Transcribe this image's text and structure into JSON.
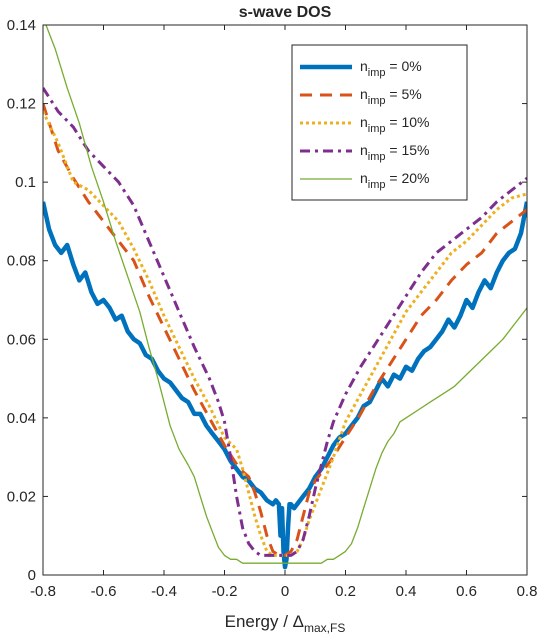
{
  "chart_data": {
    "type": "line",
    "title": "s-wave DOS",
    "xlabel": "Energy / Δ",
    "xlabel_sub": "max,FS",
    "ylabel": "",
    "xlim": [
      -0.8,
      0.8
    ],
    "ylim": [
      0,
      0.14
    ],
    "xticks": [
      -0.8,
      -0.6,
      -0.4,
      -0.2,
      0,
      0.2,
      0.4,
      0.6,
      0.8
    ],
    "xtick_labels": [
      "-0.8",
      "-0.6",
      "-0.4",
      "-0.2",
      "0",
      "0.2",
      "0.4",
      "0.6",
      "0.8"
    ],
    "yticks": [
      0,
      0.02,
      0.04,
      0.06,
      0.08,
      0.1,
      0.12,
      0.14
    ],
    "ytick_labels": [
      "0",
      "0.02",
      "0.04",
      "0.06",
      "0.08",
      "0.1",
      "0.12",
      "0.14"
    ],
    "grid": false,
    "legend_position": "top-right",
    "series": [
      {
        "name": "n_imp = 0%",
        "legend_main": "n",
        "legend_sub": "imp",
        "legend_tail": " = 0%",
        "color": "#0072BD",
        "style": "solid-thick",
        "x": [
          -0.8,
          -0.78,
          -0.76,
          -0.74,
          -0.72,
          -0.7,
          -0.68,
          -0.66,
          -0.64,
          -0.62,
          -0.6,
          -0.58,
          -0.56,
          -0.54,
          -0.52,
          -0.5,
          -0.48,
          -0.46,
          -0.44,
          -0.42,
          -0.4,
          -0.38,
          -0.36,
          -0.34,
          -0.32,
          -0.3,
          -0.28,
          -0.26,
          -0.24,
          -0.22,
          -0.2,
          -0.18,
          -0.16,
          -0.14,
          -0.12,
          -0.1,
          -0.08,
          -0.06,
          -0.04,
          -0.03,
          -0.02,
          -0.015,
          -0.01,
          -0.005,
          0,
          0.005,
          0.01,
          0.015,
          0.02,
          0.03,
          0.04,
          0.06,
          0.08,
          0.1,
          0.12,
          0.14,
          0.16,
          0.18,
          0.2,
          0.22,
          0.24,
          0.26,
          0.28,
          0.3,
          0.32,
          0.34,
          0.36,
          0.38,
          0.4,
          0.42,
          0.44,
          0.46,
          0.48,
          0.5,
          0.52,
          0.54,
          0.56,
          0.58,
          0.6,
          0.62,
          0.64,
          0.66,
          0.68,
          0.7,
          0.72,
          0.74,
          0.76,
          0.78,
          0.8
        ],
        "y": [
          0.095,
          0.088,
          0.084,
          0.082,
          0.084,
          0.079,
          0.075,
          0.077,
          0.072,
          0.069,
          0.07,
          0.068,
          0.065,
          0.066,
          0.062,
          0.06,
          0.059,
          0.056,
          0.055,
          0.052,
          0.05,
          0.049,
          0.047,
          0.045,
          0.044,
          0.041,
          0.041,
          0.038,
          0.036,
          0.034,
          0.032,
          0.029,
          0.027,
          0.025,
          0.024,
          0.022,
          0.021,
          0.019,
          0.018,
          0.019,
          0.018,
          0.01,
          0.017,
          0.006,
          0.002,
          0.004,
          0.012,
          0.018,
          0.018,
          0.017,
          0.018,
          0.02,
          0.022,
          0.025,
          0.027,
          0.03,
          0.033,
          0.035,
          0.036,
          0.038,
          0.04,
          0.043,
          0.044,
          0.047,
          0.05,
          0.048,
          0.051,
          0.05,
          0.053,
          0.052,
          0.055,
          0.057,
          0.058,
          0.06,
          0.062,
          0.065,
          0.063,
          0.066,
          0.07,
          0.068,
          0.072,
          0.075,
          0.073,
          0.077,
          0.08,
          0.082,
          0.083,
          0.087,
          0.095
        ]
      },
      {
        "name": "n_imp = 5%",
        "legend_main": "n",
        "legend_sub": "imp",
        "legend_tail": " = 5%",
        "color": "#D95319",
        "style": "dashed",
        "x": [
          -0.8,
          -0.75,
          -0.7,
          -0.65,
          -0.6,
          -0.55,
          -0.5,
          -0.45,
          -0.4,
          -0.35,
          -0.3,
          -0.25,
          -0.2,
          -0.15,
          -0.12,
          -0.1,
          -0.08,
          -0.06,
          -0.04,
          -0.02,
          0,
          0.02,
          0.04,
          0.06,
          0.08,
          0.1,
          0.12,
          0.15,
          0.2,
          0.25,
          0.3,
          0.35,
          0.4,
          0.45,
          0.5,
          0.55,
          0.6,
          0.65,
          0.7,
          0.75,
          0.8
        ],
        "y": [
          0.12,
          0.108,
          0.101,
          0.095,
          0.09,
          0.085,
          0.08,
          0.071,
          0.063,
          0.055,
          0.047,
          0.04,
          0.033,
          0.027,
          0.025,
          0.021,
          0.016,
          0.01,
          0.006,
          0.005,
          0.005,
          0.006,
          0.009,
          0.015,
          0.021,
          0.024,
          0.026,
          0.029,
          0.035,
          0.041,
          0.048,
          0.054,
          0.06,
          0.066,
          0.07,
          0.075,
          0.079,
          0.082,
          0.087,
          0.09,
          0.093
        ]
      },
      {
        "name": "n_imp = 10%",
        "legend_main": "n",
        "legend_sub": "imp",
        "legend_tail": " = 10%",
        "color": "#EDB120",
        "style": "dotted",
        "x": [
          -0.8,
          -0.75,
          -0.7,
          -0.65,
          -0.6,
          -0.55,
          -0.5,
          -0.45,
          -0.4,
          -0.35,
          -0.3,
          -0.25,
          -0.2,
          -0.16,
          -0.14,
          -0.12,
          -0.1,
          -0.08,
          -0.06,
          -0.04,
          -0.02,
          0,
          0.02,
          0.04,
          0.06,
          0.08,
          0.1,
          0.12,
          0.14,
          0.16,
          0.2,
          0.25,
          0.3,
          0.35,
          0.4,
          0.45,
          0.5,
          0.55,
          0.6,
          0.65,
          0.7,
          0.75,
          0.8
        ],
        "y": [
          0.118,
          0.11,
          0.1,
          0.098,
          0.094,
          0.09,
          0.083,
          0.075,
          0.066,
          0.058,
          0.05,
          0.043,
          0.035,
          0.032,
          0.027,
          0.021,
          0.015,
          0.01,
          0.006,
          0.005,
          0.005,
          0.005,
          0.005,
          0.006,
          0.009,
          0.014,
          0.018,
          0.022,
          0.026,
          0.03,
          0.039,
          0.046,
          0.053,
          0.06,
          0.067,
          0.072,
          0.077,
          0.082,
          0.085,
          0.089,
          0.093,
          0.096,
          0.097
        ]
      },
      {
        "name": "n_imp = 15%",
        "legend_main": "n",
        "legend_sub": "imp",
        "legend_tail": " = 15%",
        "color": "#7E2F8E",
        "style": "dashdot",
        "x": [
          -0.8,
          -0.75,
          -0.7,
          -0.65,
          -0.6,
          -0.55,
          -0.5,
          -0.45,
          -0.4,
          -0.35,
          -0.3,
          -0.25,
          -0.22,
          -0.2,
          -0.18,
          -0.16,
          -0.14,
          -0.12,
          -0.1,
          -0.08,
          -0.06,
          -0.04,
          -0.02,
          0,
          0.02,
          0.04,
          0.06,
          0.08,
          0.1,
          0.12,
          0.14,
          0.16,
          0.2,
          0.25,
          0.3,
          0.35,
          0.4,
          0.45,
          0.5,
          0.55,
          0.6,
          0.65,
          0.7,
          0.75,
          0.8
        ],
        "y": [
          0.124,
          0.118,
          0.114,
          0.108,
          0.104,
          0.1,
          0.094,
          0.085,
          0.076,
          0.067,
          0.058,
          0.05,
          0.044,
          0.039,
          0.03,
          0.02,
          0.012,
          0.008,
          0.006,
          0.005,
          0.005,
          0.005,
          0.005,
          0.005,
          0.005,
          0.006,
          0.009,
          0.015,
          0.022,
          0.028,
          0.034,
          0.039,
          0.046,
          0.053,
          0.059,
          0.065,
          0.071,
          0.077,
          0.082,
          0.085,
          0.088,
          0.091,
          0.095,
          0.098,
          0.101
        ]
      },
      {
        "name": "n_imp = 20%",
        "legend_main": "n",
        "legend_sub": "imp",
        "legend_tail": " = 20%",
        "color": "#77AC30",
        "style": "solid-thin",
        "x": [
          -0.79,
          -0.76,
          -0.72,
          -0.68,
          -0.64,
          -0.6,
          -0.56,
          -0.52,
          -0.48,
          -0.45,
          -0.42,
          -0.4,
          -0.38,
          -0.35,
          -0.32,
          -0.3,
          -0.28,
          -0.26,
          -0.24,
          -0.22,
          -0.2,
          -0.18,
          -0.16,
          -0.14,
          -0.12,
          -0.1,
          -0.08,
          -0.05,
          0,
          0.05,
          0.1,
          0.12,
          0.14,
          0.16,
          0.18,
          0.2,
          0.22,
          0.24,
          0.26,
          0.28,
          0.3,
          0.32,
          0.34,
          0.36,
          0.38,
          0.4,
          0.44,
          0.48,
          0.52,
          0.56,
          0.6,
          0.64,
          0.68,
          0.72,
          0.76,
          0.8
        ],
        "y": [
          0.14,
          0.134,
          0.124,
          0.115,
          0.104,
          0.095,
          0.085,
          0.076,
          0.067,
          0.058,
          0.05,
          0.044,
          0.038,
          0.032,
          0.028,
          0.025,
          0.02,
          0.015,
          0.011,
          0.007,
          0.005,
          0.004,
          0.004,
          0.003,
          0.003,
          0.003,
          0.003,
          0.003,
          0.003,
          0.003,
          0.003,
          0.003,
          0.004,
          0.004,
          0.005,
          0.006,
          0.008,
          0.012,
          0.017,
          0.022,
          0.027,
          0.031,
          0.034,
          0.036,
          0.039,
          0.04,
          0.042,
          0.044,
          0.046,
          0.048,
          0.051,
          0.054,
          0.057,
          0.06,
          0.064,
          0.068
        ]
      }
    ]
  }
}
